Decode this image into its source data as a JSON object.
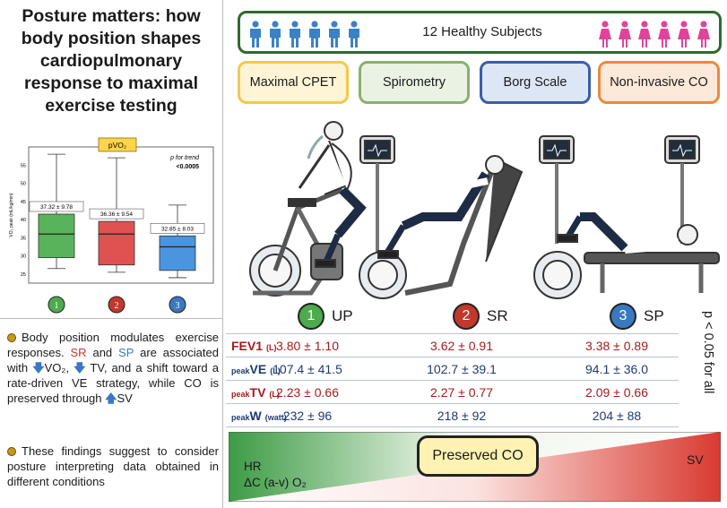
{
  "title": "Posture matters: how body position shapes cardiopulmonary response to maximal exercise testing",
  "boxplot": {
    "title": "pVO₂",
    "trend_label": "p for trend",
    "trend_value": "<0.0005",
    "ylabel": "VO₂ peak (mL/kg/min)",
    "yticks": [
      "25",
      "30",
      "35",
      "40",
      "45",
      "50",
      "55"
    ],
    "groups": [
      {
        "label": "1",
        "color": "#4daa4d",
        "box_color": "#59b35a",
        "annotation": "37.32 ± 9.78",
        "min": 26.5,
        "q1": 29.5,
        "median": 36,
        "q3": 41.5,
        "max": 58
      },
      {
        "label": "2",
        "color": "#c0392b",
        "box_color": "#e05252",
        "annotation": "36.36 ± 9.54",
        "min": 25.5,
        "q1": 27.5,
        "median": 36,
        "q3": 39.5,
        "max": 57
      },
      {
        "label": "3",
        "color": "#3a78c0",
        "box_color": "#4a95de",
        "annotation": "32.85 ± 8.03",
        "min": 24,
        "q1": 26,
        "median": 32.5,
        "q3": 35.5,
        "max": 44
      }
    ]
  },
  "finding1": {
    "p1": "Body position modulates exercise responses.",
    "sr": "SR",
    "and": "and",
    "sp": "SP",
    "p2": "are associated with",
    "vo2": "VO₂,",
    "tv": "TV, and a shift toward a rate-driven VE strategy, while CO is preserved through",
    "sv": "SV"
  },
  "finding2": "These findings suggest to consider posture interpreting data obtained in different conditions",
  "subjects": {
    "label": "12 Healthy Subjects",
    "male_color": "#3b82c4",
    "female_color": "#e0449a"
  },
  "tests": [
    "Maximal CPET",
    "Spirometry",
    "Borg Scale",
    "Non-invasive CO"
  ],
  "positions": [
    {
      "num": "1",
      "label": "UP",
      "color": "#4daa4d"
    },
    {
      "num": "2",
      "label": "SR",
      "color": "#c0392b"
    },
    {
      "num": "3",
      "label": "SP",
      "color": "#3a78c0"
    }
  ],
  "table": [
    {
      "prefix": "",
      "name": "FEV1",
      "unit": "(L)",
      "color": "red",
      "values": [
        "3.80 ± 1.10",
        "3.62 ± 0.91",
        "3.38 ± 0.89"
      ]
    },
    {
      "prefix": "peak",
      "name": "VE",
      "unit": "(L)",
      "color": "blue",
      "values": [
        "107.4 ± 41.5",
        "102.7 ± 39.1",
        "94.1 ± 36.0"
      ]
    },
    {
      "prefix": "peak",
      "name": "TV",
      "unit": "(L)",
      "color": "red",
      "values": [
        "2.23 ± 0.66",
        "2.27 ± 0.77",
        "2.09 ± 0.66"
      ]
    },
    {
      "prefix": "peak",
      "name": "W",
      "unit": "(watt)",
      "color": "blue",
      "values": [
        "232 ± 96",
        "218 ± 92",
        "204 ± 88"
      ]
    }
  ],
  "ptrend": "p < 0.05 for all",
  "bottom": {
    "preserved": "Preserved CO",
    "hr": "HR",
    "avo2": "ΔC (a-v) O₂",
    "sv": "SV"
  }
}
